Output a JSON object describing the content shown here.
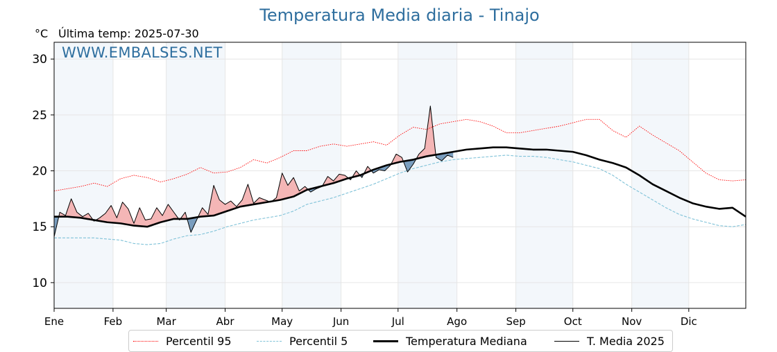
{
  "header": {
    "title": "Temperatura Media diaria - Tinajo",
    "unit": "°C",
    "last_temp": "Última temp: 2025-07-30",
    "watermark": "WWW.EMBALSES.NET"
  },
  "legend": {
    "p95": "Percentil 95",
    "p5": "Percentil 5",
    "median": "Temperatura Mediana",
    "current": "T. Media 2025"
  },
  "colors": {
    "p95": "#ff0000",
    "p5": "#7fc2d8",
    "median": "#000000",
    "current": "#000000",
    "above_fill": "#f4b6b6",
    "below_fill": "#7a9ebf",
    "month_band": "#f3f7fb",
    "title": "#2e6e9e"
  },
  "chart_data": {
    "type": "line",
    "ylim": [
      7.7,
      31.5
    ],
    "yticks": [
      10,
      15,
      20,
      25,
      30
    ],
    "months": [
      "Ene",
      "Feb",
      "Mar",
      "Abr",
      "May",
      "Jun",
      "Jul",
      "Ago",
      "Sep",
      "Oct",
      "Nov",
      "Dic"
    ],
    "month_start_days": [
      1,
      32,
      60,
      91,
      121,
      152,
      182,
      213,
      244,
      274,
      305,
      335
    ],
    "shaded_month_bands": [
      "Ene",
      "Mar",
      "May",
      "Jul",
      "Sep",
      "Nov"
    ],
    "grid": true,
    "series": [
      {
        "name": "Percentil 95",
        "style": "dotted-red",
        "x": [
          1,
          8,
          15,
          22,
          29,
          36,
          43,
          50,
          57,
          64,
          71,
          78,
          85,
          92,
          99,
          106,
          113,
          120,
          127,
          134,
          141,
          148,
          155,
          162,
          169,
          176,
          183,
          190,
          197,
          204,
          211,
          218,
          225,
          232,
          239,
          246,
          253,
          260,
          267,
          274,
          281,
          288,
          295,
          302,
          309,
          316,
          323,
          330,
          337,
          344,
          351,
          358,
          365
        ],
        "y": [
          18.2,
          18.4,
          18.6,
          18.9,
          18.6,
          19.3,
          19.6,
          19.4,
          19.0,
          19.3,
          19.7,
          20.3,
          19.8,
          19.9,
          20.3,
          21.0,
          20.7,
          21.2,
          21.8,
          21.8,
          22.2,
          22.4,
          22.2,
          22.4,
          22.6,
          22.3,
          23.2,
          23.9,
          23.7,
          24.2,
          24.4,
          24.6,
          24.4,
          24.0,
          23.4,
          23.4,
          23.6,
          23.8,
          24.0,
          24.3,
          24.6,
          24.6,
          23.6,
          23.0,
          24.0,
          23.2,
          22.5,
          21.8,
          20.8,
          19.8,
          19.2,
          19.1,
          19.2
        ]
      },
      {
        "name": "Percentil 5",
        "style": "dashed-lightblue",
        "x": [
          1,
          8,
          15,
          22,
          29,
          36,
          43,
          50,
          57,
          64,
          71,
          78,
          85,
          92,
          99,
          106,
          113,
          120,
          127,
          134,
          141,
          148,
          155,
          162,
          169,
          176,
          183,
          190,
          197,
          204,
          211,
          218,
          225,
          232,
          239,
          246,
          253,
          260,
          267,
          274,
          281,
          288,
          295,
          302,
          309,
          316,
          323,
          330,
          337,
          344,
          351,
          358,
          365
        ],
        "y": [
          14.0,
          14.0,
          14.0,
          14.0,
          13.9,
          13.8,
          13.5,
          13.4,
          13.5,
          13.9,
          14.2,
          14.3,
          14.6,
          15.0,
          15.3,
          15.6,
          15.8,
          16.0,
          16.4,
          17.0,
          17.3,
          17.6,
          18.0,
          18.4,
          18.8,
          19.3,
          19.8,
          20.2,
          20.5,
          20.8,
          21.0,
          21.1,
          21.2,
          21.3,
          21.4,
          21.3,
          21.3,
          21.2,
          21.0,
          20.8,
          20.5,
          20.2,
          19.6,
          18.8,
          18.1,
          17.4,
          16.7,
          16.1,
          15.7,
          15.4,
          15.1,
          15.0,
          15.2
        ]
      },
      {
        "name": "Temperatura Mediana",
        "style": "bold-black",
        "x": [
          1,
          8,
          15,
          22,
          29,
          36,
          43,
          50,
          57,
          64,
          71,
          78,
          85,
          92,
          99,
          106,
          113,
          120,
          127,
          134,
          141,
          148,
          155,
          162,
          169,
          176,
          183,
          190,
          197,
          204,
          211,
          218,
          225,
          232,
          239,
          246,
          253,
          260,
          267,
          274,
          281,
          288,
          295,
          302,
          309,
          316,
          323,
          330,
          337,
          344,
          351,
          358,
          365
        ],
        "y": [
          15.9,
          15.9,
          15.8,
          15.6,
          15.4,
          15.3,
          15.1,
          15.0,
          15.4,
          15.7,
          15.7,
          15.9,
          16.0,
          16.4,
          16.8,
          17.0,
          17.2,
          17.4,
          17.7,
          18.3,
          18.6,
          18.9,
          19.3,
          19.6,
          20.1,
          20.5,
          20.8,
          21.0,
          21.3,
          21.5,
          21.7,
          21.9,
          22.0,
          22.1,
          22.1,
          22.0,
          21.9,
          21.9,
          21.8,
          21.7,
          21.4,
          21.0,
          20.7,
          20.3,
          19.6,
          18.8,
          18.2,
          17.6,
          17.1,
          16.8,
          16.6,
          16.7,
          15.9
        ]
      },
      {
        "name": "T. Media 2025",
        "style": "thin-black",
        "x": [
          1,
          4,
          7,
          10,
          13,
          16,
          19,
          22,
          25,
          28,
          31,
          34,
          37,
          40,
          43,
          46,
          49,
          52,
          55,
          58,
          61,
          64,
          67,
          70,
          73,
          76,
          79,
          82,
          85,
          88,
          91,
          94,
          97,
          100,
          103,
          106,
          109,
          112,
          115,
          118,
          121,
          124,
          127,
          130,
          133,
          136,
          139,
          142,
          145,
          148,
          151,
          154,
          157,
          160,
          163,
          166,
          169,
          172,
          175,
          178,
          181,
          184,
          187,
          190,
          193,
          196,
          199,
          202,
          205,
          208,
          211
        ],
        "y": [
          14.1,
          16.3,
          16.0,
          17.5,
          16.3,
          15.9,
          16.2,
          15.5,
          15.8,
          16.2,
          16.9,
          15.8,
          17.2,
          16.6,
          15.3,
          16.7,
          15.6,
          15.7,
          16.7,
          16.0,
          17.0,
          16.3,
          15.6,
          16.3,
          14.5,
          15.6,
          16.7,
          16.1,
          18.7,
          17.4,
          17.0,
          17.3,
          16.8,
          17.4,
          18.8,
          17.1,
          17.6,
          17.4,
          17.2,
          17.6,
          19.8,
          18.7,
          19.4,
          18.2,
          18.6,
          18.1,
          18.4,
          18.6,
          19.5,
          19.1,
          19.7,
          19.6,
          19.2,
          20.0,
          19.4,
          20.4,
          19.8,
          20.1,
          20.0,
          20.5,
          21.5,
          21.2,
          19.9,
          20.6,
          21.5,
          22.0,
          25.8,
          21.2,
          20.9,
          21.4,
          21.2
        ]
      }
    ]
  }
}
